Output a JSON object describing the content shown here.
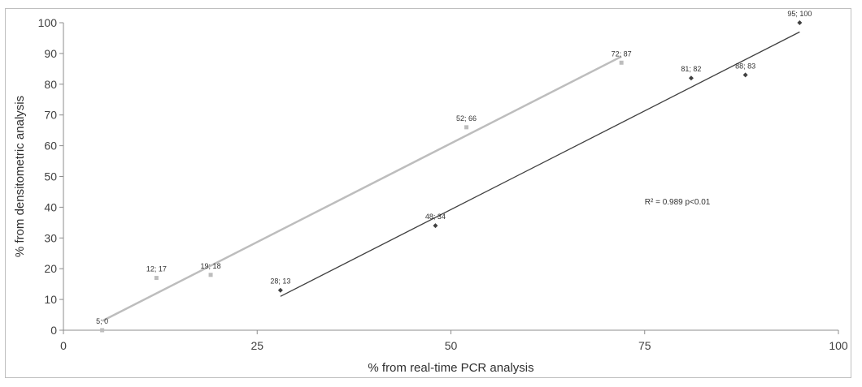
{
  "chart_data": {
    "type": "scatter",
    "title": "",
    "xlabel": "% from real-time PCR analysis",
    "ylabel": "% from densitometric analysis",
    "xlim": [
      0,
      100
    ],
    "ylim": [
      0,
      100
    ],
    "xticks": [
      0,
      25,
      50,
      75,
      100
    ],
    "yticks": [
      0,
      10,
      20,
      30,
      40,
      50,
      60,
      70,
      80,
      90,
      100
    ],
    "grid": false,
    "series": [
      {
        "color": "#bdbdbd",
        "marker": "square",
        "points": [
          {
            "x": 5,
            "y": 0,
            "label": "5; 0"
          },
          {
            "x": 12,
            "y": 17,
            "label": "12; 17"
          },
          {
            "x": 19,
            "y": 18,
            "label": "19; 18"
          },
          {
            "x": 52,
            "y": 66,
            "label": "52; 66"
          },
          {
            "x": 72,
            "y": 87,
            "label": "72; 87"
          }
        ],
        "trendline": {
          "x1": 5,
          "y1": 3,
          "x2": 72,
          "y2": 89
        }
      },
      {
        "color": "#404040",
        "marker": "diamond",
        "points": [
          {
            "x": 28,
            "y": 13,
            "label": "28; 13"
          },
          {
            "x": 48,
            "y": 34,
            "label": "48; 34"
          },
          {
            "x": 81,
            "y": 82,
            "label": "81; 82"
          },
          {
            "x": 88,
            "y": 83,
            "label": "88; 83"
          },
          {
            "x": 95,
            "y": 100,
            "label": "95; 100"
          }
        ],
        "trendline": {
          "x1": 28,
          "y1": 11,
          "x2": 95,
          "y2": 97
        }
      }
    ],
    "annotation": "R² = 0.989   p<0.01",
    "annotation_at": {
      "x": 75,
      "y": 42
    }
  }
}
